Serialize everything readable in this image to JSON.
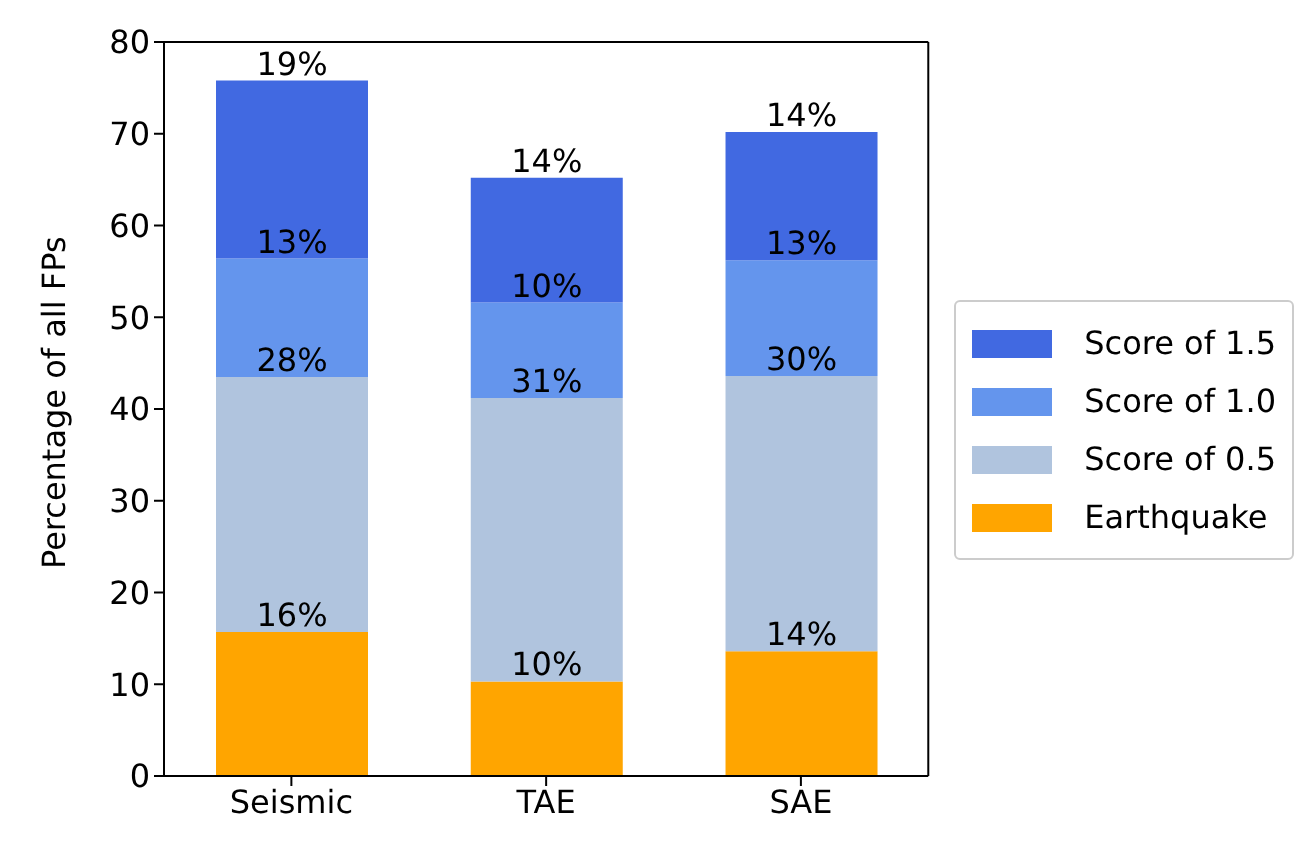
{
  "chart_data": {
    "type": "bar",
    "stacked": true,
    "ylabel": "Percentage of all FPs",
    "categories": [
      "Seismic",
      "TAE",
      "SAE"
    ],
    "series": [
      {
        "name": "Earthquake",
        "color": "#ffa500",
        "values": [
          15.7,
          10.3,
          13.6
        ],
        "value_labels": [
          "16%",
          "10%",
          "14%"
        ]
      },
      {
        "name": "Score of 0.5",
        "color": "#b0c4de",
        "values": [
          27.8,
          30.9,
          30.0
        ],
        "value_labels": [
          "28%",
          "31%",
          "30%"
        ]
      },
      {
        "name": "Score of 1.0",
        "color": "#6495ed",
        "values": [
          12.9,
          10.4,
          12.6
        ],
        "value_labels": [
          "13%",
          "10%",
          "13%"
        ]
      },
      {
        "name": "Score of 1.5",
        "color": "#4169e1",
        "values": [
          19.4,
          13.6,
          14.0
        ],
        "value_labels": [
          "19%",
          "14%",
          "14%"
        ]
      }
    ],
    "ylim": [
      0,
      80
    ],
    "yticks": [
      0,
      10,
      20,
      30,
      40,
      50,
      60,
      70,
      80
    ],
    "legend": "right",
    "grid": false
  }
}
